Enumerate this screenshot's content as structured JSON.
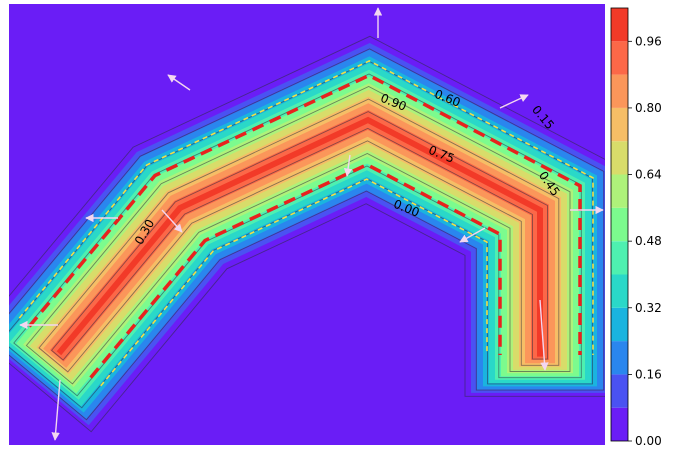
{
  "chart_data": {
    "type": "heatmap",
    "title": "",
    "xlabel": "",
    "ylabel": "",
    "colorbar": {
      "min": 0.0,
      "max": 1.04,
      "ticks": [
        "0.00",
        "0.16",
        "0.32",
        "0.48",
        "0.64",
        "0.80",
        "0.96"
      ],
      "tick_values": [
        0.0,
        0.16,
        0.32,
        0.48,
        0.64,
        0.8,
        0.96
      ],
      "levels": [
        0.0,
        0.08,
        0.16,
        0.24,
        0.32,
        0.4,
        0.48,
        0.56,
        0.64,
        0.72,
        0.8,
        0.88,
        0.96,
        1.04
      ],
      "colors": [
        "#6a1df6",
        "#4a52f2",
        "#2a86ee",
        "#1ab4df",
        "#2ad8c8",
        "#4ef0b0",
        "#7cfb8e",
        "#aef27a",
        "#d8dc6a",
        "#f6be66",
        "#fb965a",
        "#fc6848",
        "#f23a28",
        "#d01a10"
      ]
    },
    "contour_labels": [
      "0.90",
      "0.60",
      "0.15",
      "0.75",
      "0.45",
      "0.00",
      "0.30"
    ],
    "colors": {
      "background": "#6a1df6",
      "boundary_dashed": "#e8221e",
      "inner_dashed": "#f0e04a",
      "arrows": "#f3d6f0"
    }
  }
}
